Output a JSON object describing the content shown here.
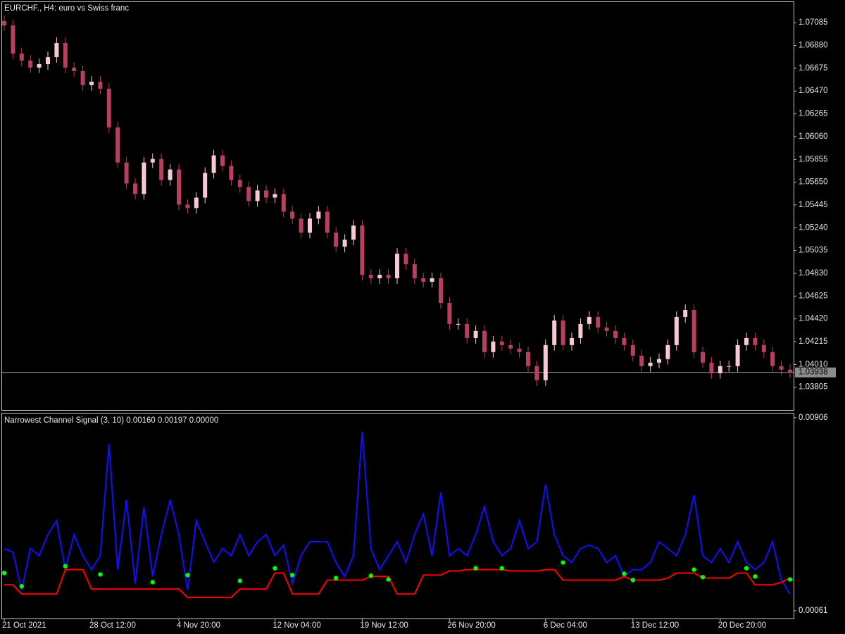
{
  "chart_data": [
    {
      "type": "candlestick",
      "title": "EURCHF., H4:  euro vs Swiss franc",
      "open": [
        1.071,
        1.0706,
        1.06807,
        1.06744,
        1.06681,
        1.06712,
        1.06775,
        1.06902,
        1.06681,
        1.06649,
        1.06523,
        1.06554,
        1.06491,
        1.06143,
        1.05827,
        1.05638,
        1.05543,
        1.05827,
        1.05859,
        1.05669,
        1.05764,
        1.05448,
        1.05417,
        1.05511,
        1.05733,
        1.05891,
        1.05796,
        1.05669,
        1.05606,
        1.0548,
        1.05575,
        1.05511,
        1.05543,
        1.05385,
        1.05322,
        1.05195,
        1.05322,
        1.05385,
        1.05195,
        1.05069,
        1.05132,
        1.05259,
        1.04816,
        1.04785,
        1.04816,
        1.04785,
        1.05006,
        1.04911,
        1.04785,
        1.04753,
        1.04785,
        1.04563,
        1.04374,
        1.04374,
        1.04247,
        1.04311,
        1.04121,
        1.04216,
        1.04184,
        1.04153,
        1.04121,
        1.03995,
        1.03868,
        1.04184,
        1.04405,
        1.04184,
        1.04247,
        1.04374,
        1.04437,
        1.04342,
        1.04311,
        1.04247,
        1.04184,
        1.04089,
        1.03995,
        1.04026,
        1.04058,
        1.04184,
        1.04437,
        1.045,
        1.04121,
        1.04026,
        1.03931,
        1.03995,
        1.03995,
        1.04184,
        1.04247,
        1.04184,
        1.04121,
        1.03995,
        1.03963
      ],
      "high": [
        1.0715,
        1.0711,
        1.06857,
        1.06794,
        1.06762,
        1.06825,
        1.06952,
        1.06952,
        1.06731,
        1.06699,
        1.06604,
        1.06604,
        1.06541,
        1.06193,
        1.05877,
        1.05688,
        1.05877,
        1.05909,
        1.05909,
        1.05814,
        1.05814,
        1.05498,
        1.05561,
        1.05783,
        1.05941,
        1.05941,
        1.05846,
        1.05719,
        1.05656,
        1.05625,
        1.05625,
        1.05593,
        1.05593,
        1.05435,
        1.05372,
        1.05372,
        1.05435,
        1.05435,
        1.05245,
        1.05182,
        1.05309,
        1.05309,
        1.04866,
        1.04866,
        1.04866,
        1.05056,
        1.05056,
        1.04961,
        1.04835,
        1.04835,
        1.04835,
        1.04613,
        1.04424,
        1.04424,
        1.04361,
        1.04361,
        1.04266,
        1.04266,
        1.04234,
        1.04203,
        1.04171,
        1.04045,
        1.04234,
        1.04455,
        1.04455,
        1.04297,
        1.04424,
        1.04487,
        1.04487,
        1.04392,
        1.04361,
        1.04297,
        1.04234,
        1.04139,
        1.04076,
        1.04108,
        1.04234,
        1.04487,
        1.0455,
        1.0455,
        1.04171,
        1.04076,
        1.04045,
        1.04045,
        1.04234,
        1.04297,
        1.04297,
        1.04234,
        1.04171,
        1.04045,
        1.04013
      ],
      "low": [
        1.0701,
        1.06757,
        1.06694,
        1.06631,
        1.06631,
        1.06662,
        1.06725,
        1.06631,
        1.06599,
        1.06473,
        1.06473,
        1.06441,
        1.06093,
        1.05777,
        1.05588,
        1.05493,
        1.05493,
        1.05777,
        1.05619,
        1.05619,
        1.05398,
        1.05367,
        1.05367,
        1.05461,
        1.05683,
        1.05746,
        1.05619,
        1.05556,
        1.0543,
        1.0543,
        1.05461,
        1.05461,
        1.05335,
        1.05272,
        1.05145,
        1.05145,
        1.05272,
        1.05145,
        1.05019,
        1.05019,
        1.05082,
        1.04766,
        1.04735,
        1.04735,
        1.04735,
        1.04735,
        1.04861,
        1.04735,
        1.04703,
        1.04703,
        1.04513,
        1.04324,
        1.04324,
        1.04197,
        1.04197,
        1.04071,
        1.04071,
        1.04134,
        1.04103,
        1.04071,
        1.03945,
        1.03818,
        1.03818,
        1.04134,
        1.04134,
        1.04134,
        1.04197,
        1.04324,
        1.04292,
        1.04261,
        1.04197,
        1.04134,
        1.04039,
        1.03945,
        1.03945,
        1.03976,
        1.04008,
        1.04134,
        1.04387,
        1.04071,
        1.03976,
        1.03881,
        1.03881,
        1.03945,
        1.03945,
        1.04134,
        1.04134,
        1.04071,
        1.03945,
        1.03913,
        1.03888
      ],
      "close": [
        1.0706,
        1.06807,
        1.06744,
        1.06681,
        1.06712,
        1.06775,
        1.06902,
        1.06681,
        1.06649,
        1.06523,
        1.06554,
        1.06491,
        1.06143,
        1.05827,
        1.05638,
        1.05543,
        1.05827,
        1.05859,
        1.05669,
        1.05764,
        1.05448,
        1.05417,
        1.05511,
        1.05733,
        1.05891,
        1.05796,
        1.05669,
        1.05606,
        1.0548,
        1.05575,
        1.05511,
        1.05543,
        1.05385,
        1.05322,
        1.05195,
        1.05322,
        1.05385,
        1.05195,
        1.05069,
        1.05132,
        1.05259,
        1.04816,
        1.04785,
        1.04816,
        1.04785,
        1.05006,
        1.04911,
        1.04785,
        1.04753,
        1.04785,
        1.04563,
        1.04374,
        1.04374,
        1.04247,
        1.04311,
        1.04121,
        1.04216,
        1.04184,
        1.04153,
        1.04121,
        1.03995,
        1.03868,
        1.04184,
        1.04405,
        1.04184,
        1.04247,
        1.04374,
        1.04437,
        1.04342,
        1.04311,
        1.04247,
        1.04184,
        1.04089,
        1.03995,
        1.04026,
        1.04058,
        1.04184,
        1.04437,
        1.045,
        1.04121,
        1.04026,
        1.03931,
        1.03995,
        1.03995,
        1.04184,
        1.04247,
        1.04184,
        1.04121,
        1.03995,
        1.03963,
        1.03938
      ],
      "up_color": "#f7c9d2",
      "down_color": "#b8405e",
      "last_price": 1.03938,
      "ylim": [
        1.036,
        1.0727
      ],
      "yticks": [
        1.07085,
        {
          "value": 1.0688,
          "label": "1.06880"
        },
        1.06675,
        {
          "value": 1.0647,
          "label": "1.06470"
        },
        1.06265,
        {
          "value": 1.0606,
          "label": "1.06060"
        },
        1.05855,
        {
          "value": 1.0565,
          "label": "1.05650"
        },
        1.05445,
        {
          "value": 1.0524,
          "label": "1.05240"
        },
        1.05035,
        {
          "value": 1.0483,
          "label": "1.04830"
        },
        1.04625,
        {
          "value": 1.0442,
          "label": "1.04420"
        },
        1.04215,
        {
          "value": 1.0401,
          "label": "1.04010"
        },
        1.03805
      ]
    },
    {
      "type": "line",
      "title": "Narrowest Channel Signal (3, 10) 0.00160 0.00197 0.00000",
      "categories": [
        "21 Oct 2021",
        null,
        null,
        null,
        null,
        null,
        null,
        null,
        null,
        null,
        "28 Oct 12:00",
        null,
        null,
        null,
        null,
        null,
        null,
        null,
        null,
        null,
        "4 Nov 20:00",
        null,
        null,
        null,
        null,
        null,
        null,
        null,
        null,
        null,
        null,
        "12 Nov 04:00",
        null,
        null,
        null,
        null,
        null,
        null,
        null,
        null,
        null,
        "19 Nov 12:00",
        null,
        null,
        null,
        null,
        null,
        null,
        null,
        null,
        null,
        "26 Nov 20:00",
        null,
        null,
        null,
        null,
        null,
        null,
        null,
        null,
        null,
        null,
        "6 Dec 04:00",
        null,
        null,
        null,
        null,
        null,
        null,
        null,
        null,
        null,
        "13 Dec 12:00",
        null,
        null,
        null,
        null,
        null,
        null,
        null,
        null,
        null,
        "20 Dec 20:00",
        null,
        null,
        null,
        null,
        null,
        null,
        null,
        null
      ],
      "series": [
        {
          "color": "#1010ff",
          "mode": "line",
          "values": [
            0.00333,
            0.00317,
            0.0015,
            0.00333,
            0.00302,
            0.00394,
            0.00455,
            0.00241,
            0.00394,
            0.00302,
            0.00241,
            0.00302,
            0.0079,
            0.00241,
            0.00546,
            0.0018,
            0.00516,
            0.00211,
            0.00394,
            0.00546,
            0.00394,
            0.0015,
            0.00455,
            0.00363,
            0.00272,
            0.00333,
            0.00302,
            0.00394,
            0.00302,
            0.00363,
            0.00394,
            0.00302,
            0.00348,
            0.0018,
            0.00302,
            0.00363,
            0.00363,
            0.00363,
            0.00272,
            0.00211,
            0.00302,
            0.00845,
            0.00333,
            0.00241,
            0.00302,
            0.00363,
            0.00272,
            0.00394,
            0.00485,
            0.00302,
            0.00577,
            0.00302,
            0.00333,
            0.00302,
            0.00394,
            0.00516,
            0.00363,
            0.00302,
            0.00333,
            0.00455,
            0.00333,
            0.00363,
            0.00613,
            0.00394,
            0.00302,
            0.00272,
            0.00333,
            0.00348,
            0.00333,
            0.00272,
            0.00302,
            0.00211,
            0.00241,
            0.00241,
            0.00272,
            0.00363,
            0.00333,
            0.00302,
            0.00394,
            0.00567,
            0.00302,
            0.00272,
            0.00333,
            0.00272,
            0.00363,
            0.00272,
            0.00241,
            0.00272,
            0.00363,
            0.00195,
            0.00134
          ]
        },
        {
          "color": "#ff0000",
          "mode": "line",
          "values": [
            0.00174,
            0.00174,
            0.00134,
            0.00134,
            0.00134,
            0.00134,
            0.00134,
            0.00241,
            0.00241,
            0.00241,
            0.00156,
            0.00156,
            0.00156,
            0.00156,
            0.00156,
            0.00156,
            0.00156,
            0.00156,
            0.00156,
            0.00156,
            0.00156,
            0.00119,
            0.00119,
            0.00119,
            0.00119,
            0.00119,
            0.00119,
            0.00156,
            0.00156,
            0.00156,
            0.00156,
            0.00226,
            0.00226,
            0.00134,
            0.00134,
            0.00134,
            0.00134,
            0.00195,
            0.00195,
            0.00195,
            0.00195,
            0.00195,
            0.00211,
            0.00211,
            0.00211,
            0.00134,
            0.00134,
            0.00134,
            0.00217,
            0.00217,
            0.00217,
            0.00235,
            0.00235,
            0.00241,
            0.00241,
            0.00241,
            0.00241,
            0.00241,
            0.00235,
            0.00235,
            0.00235,
            0.00235,
            0.00241,
            0.00241,
            0.00195,
            0.00195,
            0.00195,
            0.00195,
            0.00195,
            0.00195,
            0.00195,
            0.00211,
            0.00195,
            0.00195,
            0.00195,
            0.00195,
            0.00204,
            0.00226,
            0.00226,
            0.00226,
            0.00204,
            0.00204,
            0.00204,
            0.00204,
            0.00226,
            0.00226,
            0.00174,
            0.00174,
            0.00174,
            0.00186,
            0.00204
          ]
        },
        {
          "color": "#00ff00",
          "mode": "points",
          "values": [
            0.00226,
            null,
            0.00168,
            null,
            null,
            null,
            null,
            0.00256,
            null,
            null,
            null,
            0.0022,
            null,
            null,
            null,
            null,
            null,
            0.00186,
            null,
            null,
            null,
            0.00217,
            null,
            null,
            null,
            null,
            null,
            0.00192,
            null,
            null,
            null,
            0.00247,
            null,
            0.00217,
            null,
            null,
            null,
            null,
            0.00204,
            null,
            null,
            null,
            0.00214,
            null,
            0.00198,
            null,
            null,
            null,
            null,
            null,
            null,
            null,
            null,
            null,
            0.00247,
            null,
            null,
            0.00247,
            null,
            null,
            null,
            null,
            null,
            null,
            0.00272,
            null,
            null,
            null,
            null,
            null,
            null,
            0.00223,
            0.00195,
            null,
            null,
            null,
            null,
            null,
            null,
            0.00241,
            0.00208,
            null,
            null,
            null,
            null,
            0.00247,
            0.00211,
            null,
            null,
            null,
            0.00198
          ]
        }
      ],
      "ylim": [
        0.00027,
        0.00924
      ],
      "yticks": [
        0.00906,
        0.00061
      ]
    }
  ]
}
